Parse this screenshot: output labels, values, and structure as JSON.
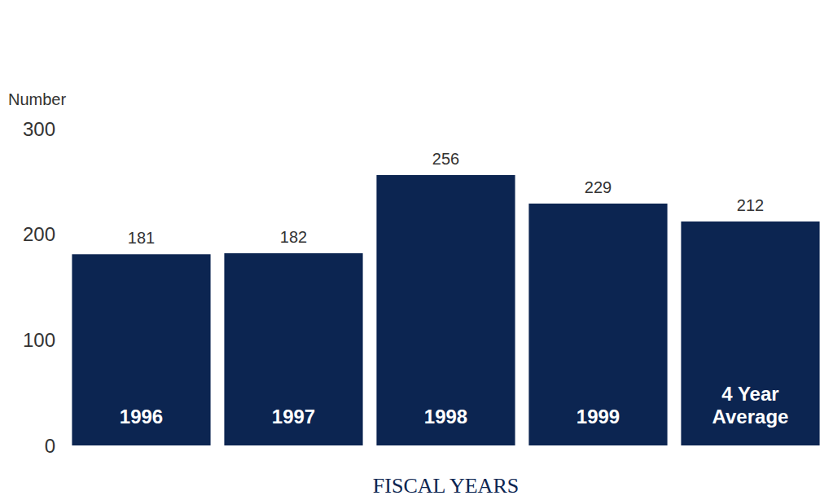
{
  "chart_data": {
    "type": "bar",
    "y_label": "Number",
    "x_label": "FISCAL YEARS",
    "categories": [
      "1996",
      "1997",
      "1998",
      "1999",
      "4 Year Average"
    ],
    "values": [
      181,
      182,
      256,
      229,
      212
    ],
    "color": "#0c2551",
    "ylim": [
      0,
      300
    ],
    "yticks": [
      0,
      100,
      200,
      300
    ],
    "grid": false,
    "data_labels": true
  }
}
